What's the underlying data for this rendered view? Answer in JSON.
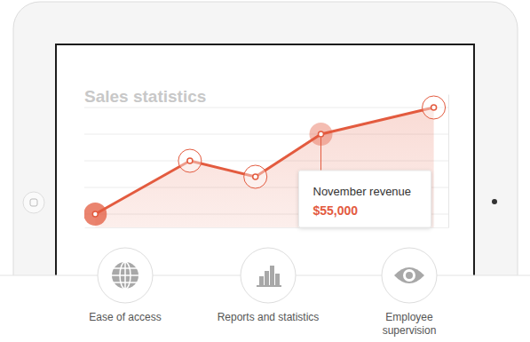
{
  "chart_data": {
    "type": "line",
    "title": "Sales statistics",
    "x": [
      3,
      29,
      47,
      65,
      96
    ],
    "values": [
      25000,
      45000,
      39000,
      55000,
      65000
    ],
    "color": "#e35b3f",
    "marker": "circle",
    "xlim": [
      0,
      100
    ],
    "ylim": [
      20000,
      70000
    ],
    "yticks": [
      25000,
      35000,
      45000,
      55000,
      65000
    ],
    "grid": true,
    "tick_labels": false,
    "annotations": [
      {
        "text": "November revenue",
        "x": 65,
        "y": 55000,
        "label": "$55,000"
      }
    ]
  },
  "features": [
    {
      "lines": [
        "Ease of access"
      ]
    },
    {
      "lines": [
        "Reports and statistics"
      ]
    },
    {
      "lines": [
        "Employee",
        "supervision"
      ]
    }
  ]
}
